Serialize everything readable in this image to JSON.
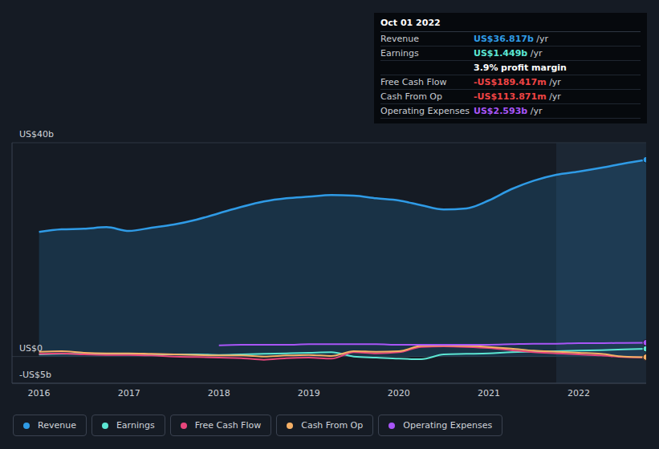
{
  "chart_data": {
    "type": "line",
    "x": [
      2016.0,
      2016.25,
      2016.5,
      2016.75,
      2017.0,
      2017.25,
      2017.5,
      2017.75,
      2018.0,
      2018.25,
      2018.5,
      2018.75,
      2019.0,
      2019.25,
      2019.5,
      2019.75,
      2020.0,
      2020.25,
      2020.5,
      2020.75,
      2021.0,
      2021.25,
      2021.5,
      2021.75,
      2022.0,
      2022.25,
      2022.5,
      2022.75
    ],
    "xlim": [
      2015.7,
      2022.75
    ],
    "xticks": [
      2016,
      2017,
      2018,
      2019,
      2020,
      2021,
      2022
    ],
    "ylim": [
      -5,
      40
    ],
    "yticks": [
      {
        "value": -5,
        "label": "-US$5b"
      },
      {
        "value": 0,
        "label": "US$0"
      },
      {
        "value": 40,
        "label": "US$40b"
      }
    ],
    "grid": true,
    "legend": "bottom left",
    "shaded_range": [
      2021.75,
      2022.75
    ],
    "series": [
      {
        "name": "Revenue",
        "color": "#2f9be6",
        "type": "area",
        "values": [
          23.3,
          23.8,
          23.9,
          24.2,
          23.5,
          24.1,
          24.7,
          25.6,
          26.8,
          28.0,
          29.0,
          29.6,
          29.9,
          30.2,
          30.1,
          29.6,
          29.2,
          28.3,
          27.5,
          27.7,
          29.2,
          31.3,
          32.9,
          34.0,
          34.6,
          35.3,
          36.1,
          36.817
        ]
      },
      {
        "name": "Earnings",
        "color": "#5ce6d3",
        "type": "line",
        "values": [
          0.4,
          0.5,
          0.5,
          0.5,
          0.4,
          0.4,
          0.4,
          0.4,
          0.3,
          0.4,
          0.5,
          0.6,
          0.7,
          0.8,
          0.0,
          -0.2,
          -0.4,
          -0.5,
          0.4,
          0.5,
          0.6,
          0.8,
          0.9,
          1.0,
          1.1,
          1.2,
          1.35,
          1.449
        ]
      },
      {
        "name": "Free Cash Flow",
        "color": "#e8467c",
        "type": "line",
        "values": [
          0.5,
          0.6,
          0.4,
          0.3,
          0.3,
          0.2,
          0.0,
          -0.1,
          -0.2,
          -0.3,
          -0.6,
          -0.3,
          -0.2,
          -0.4,
          0.8,
          0.6,
          0.8,
          1.8,
          1.9,
          1.8,
          1.6,
          1.2,
          0.8,
          0.6,
          0.4,
          0.2,
          -0.1,
          -0.189417
        ]
      },
      {
        "name": "Cash From Op",
        "color": "#f5b066",
        "type": "line",
        "values": [
          0.9,
          1.0,
          0.7,
          0.6,
          0.6,
          0.5,
          0.4,
          0.3,
          0.2,
          0.2,
          0.0,
          0.2,
          0.3,
          0.1,
          1.0,
          0.9,
          1.0,
          2.0,
          2.1,
          2.0,
          1.8,
          1.5,
          1.1,
          0.9,
          0.7,
          0.5,
          0.0,
          -0.113871
        ]
      },
      {
        "name": "Operating Expenses",
        "color": "#a855f7",
        "type": "line",
        "values": [
          null,
          null,
          null,
          null,
          null,
          null,
          null,
          null,
          2.1,
          2.2,
          2.2,
          2.2,
          2.3,
          2.3,
          2.3,
          2.3,
          2.2,
          2.2,
          2.2,
          2.2,
          2.2,
          2.3,
          2.4,
          2.4,
          2.5,
          2.5,
          2.55,
          2.593
        ]
      }
    ],
    "annotations": {
      "title": "Oct 01 2022",
      "rows": [
        {
          "label": "Revenue",
          "value": "US$36.817b",
          "unit": "/yr"
        },
        {
          "label": "Earnings",
          "value": "US$1.449b",
          "unit": "/yr"
        },
        {
          "value": "3.9%",
          "unit": "profit margin"
        },
        {
          "label": "Free Cash Flow",
          "value": "-US$189.417m",
          "unit": "/yr"
        },
        {
          "label": "Cash From Op",
          "value": "-US$113.871m",
          "unit": "/yr"
        },
        {
          "label": "Operating Expenses",
          "value": "US$2.593b",
          "unit": "/yr"
        }
      ]
    }
  }
}
